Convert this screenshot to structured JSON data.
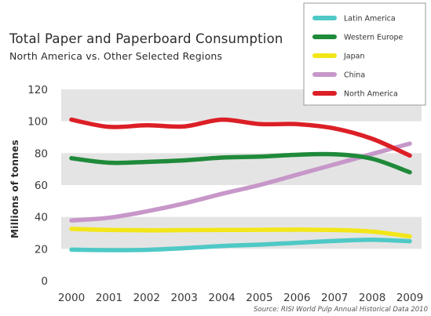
{
  "chart_data": {
    "type": "line",
    "title": "Total Paper and Paperboard Consumption",
    "subtitle": "North America vs. Other Selected Regions",
    "ylabel": "Millions of tonnes",
    "xlabel": "",
    "source": "Source: RISI World Pulp Annual Historical Data 2010",
    "categories": [
      "2000",
      "2001",
      "2002",
      "2003",
      "2004",
      "2005",
      "2006",
      "2007",
      "2008",
      "2009"
    ],
    "yticks": [
      "0",
      "20",
      "40",
      "60",
      "80",
      "100",
      "120"
    ],
    "ylim": [
      0,
      120
    ],
    "grid": "alternating horizontal bands",
    "legend_position": "top-right",
    "series": [
      {
        "name": "Latin America",
        "color": "#4ec9c6",
        "values": [
          19.5,
          19.2,
          19.4,
          20.4,
          21.8,
          22.6,
          23.8,
          25.0,
          25.7,
          24.8
        ]
      },
      {
        "name": "Western Europe",
        "color": "#1f8a3a",
        "values": [
          76.8,
          74.0,
          74.5,
          75.5,
          77.2,
          77.8,
          79.0,
          79.3,
          76.5,
          68.0
        ]
      },
      {
        "name": "Japan",
        "color": "#f2e619",
        "values": [
          32.5,
          31.8,
          31.6,
          31.7,
          31.8,
          31.9,
          32.0,
          31.8,
          30.8,
          27.8
        ]
      },
      {
        "name": "China",
        "color": "#c797c9",
        "values": [
          37.8,
          39.5,
          43.5,
          48.5,
          54.5,
          60.0,
          66.5,
          73.0,
          79.5,
          86.0
        ]
      },
      {
        "name": "North America",
        "color": "#dc1f26",
        "values": [
          101.0,
          96.5,
          97.5,
          96.8,
          101.0,
          98.3,
          98.2,
          95.5,
          89.0,
          78.5
        ]
      }
    ],
    "band_color": "#e4e4e4"
  }
}
